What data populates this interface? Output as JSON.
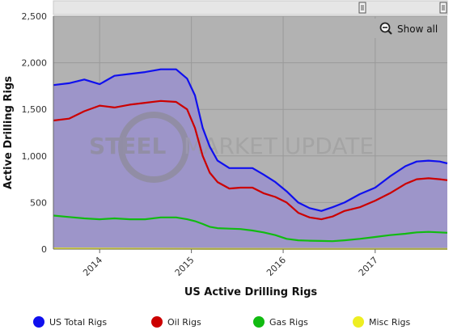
{
  "chart_data": {
    "type": "area",
    "xlabel": "US Active Drilling Rigs",
    "ylabel": "Active Drilling Rigs",
    "ylim": [
      0,
      2500
    ],
    "xlim": [
      "2013-07-01",
      "2017-10-15"
    ],
    "y_ticks": [
      "0",
      "500",
      "1,000",
      "1,500",
      "2,000",
      "2,500"
    ],
    "y_tick_values": [
      0,
      500,
      1000,
      1500,
      2000,
      2500
    ],
    "x_ticks": [
      "2014",
      "2015",
      "2016",
      "2017"
    ],
    "x_tick_dates": [
      "2014-01-01",
      "2015-01-01",
      "2016-01-01",
      "2017-01-01"
    ],
    "grid": true,
    "legend_position": "bottom",
    "watermark": {
      "left": "STEEL",
      "right": "MARKET UPDATE"
    },
    "show_all_label": "Show all",
    "colors": {
      "plot_bg": "#b2b2b2",
      "area_fill": "#9d95c9",
      "us_total": "#1010ee",
      "oil": "#cc0000",
      "gas": "#11bb11",
      "misc": "#eeee22"
    },
    "series": [
      {
        "name": "US Total Rigs",
        "color": "#1010ee",
        "points": [
          [
            "2013-07-01",
            1760
          ],
          [
            "2013-09-01",
            1780
          ],
          [
            "2013-11-01",
            1820
          ],
          [
            "2014-01-01",
            1770
          ],
          [
            "2014-03-01",
            1860
          ],
          [
            "2014-05-01",
            1880
          ],
          [
            "2014-07-01",
            1900
          ],
          [
            "2014-09-01",
            1930
          ],
          [
            "2014-11-01",
            1930
          ],
          [
            "2014-12-15",
            1830
          ],
          [
            "2015-01-15",
            1650
          ],
          [
            "2015-02-15",
            1300
          ],
          [
            "2015-03-15",
            1100
          ],
          [
            "2015-04-15",
            950
          ],
          [
            "2015-06-01",
            870
          ],
          [
            "2015-07-15",
            870
          ],
          [
            "2015-09-01",
            870
          ],
          [
            "2015-10-15",
            800
          ],
          [
            "2015-12-01",
            720
          ],
          [
            "2016-01-15",
            620
          ],
          [
            "2016-03-01",
            500
          ],
          [
            "2016-04-15",
            440
          ],
          [
            "2016-06-01",
            410
          ],
          [
            "2016-07-15",
            450
          ],
          [
            "2016-09-01",
            500
          ],
          [
            "2016-11-01",
            590
          ],
          [
            "2017-01-01",
            660
          ],
          [
            "2017-03-01",
            780
          ],
          [
            "2017-05-01",
            890
          ],
          [
            "2017-06-15",
            940
          ],
          [
            "2017-08-01",
            950
          ],
          [
            "2017-09-15",
            940
          ],
          [
            "2017-10-15",
            920
          ]
        ]
      },
      {
        "name": "Oil Rigs",
        "color": "#cc0000",
        "points": [
          [
            "2013-07-01",
            1380
          ],
          [
            "2013-09-01",
            1400
          ],
          [
            "2013-11-01",
            1480
          ],
          [
            "2014-01-01",
            1540
          ],
          [
            "2014-03-01",
            1520
          ],
          [
            "2014-05-01",
            1550
          ],
          [
            "2014-07-01",
            1570
          ],
          [
            "2014-09-01",
            1590
          ],
          [
            "2014-11-01",
            1580
          ],
          [
            "2014-12-15",
            1500
          ],
          [
            "2015-01-15",
            1300
          ],
          [
            "2015-02-15",
            1000
          ],
          [
            "2015-03-15",
            820
          ],
          [
            "2015-04-15",
            720
          ],
          [
            "2015-06-01",
            650
          ],
          [
            "2015-07-15",
            660
          ],
          [
            "2015-09-01",
            660
          ],
          [
            "2015-10-15",
            600
          ],
          [
            "2015-12-01",
            560
          ],
          [
            "2016-01-15",
            500
          ],
          [
            "2016-03-01",
            390
          ],
          [
            "2016-04-15",
            340
          ],
          [
            "2016-06-01",
            320
          ],
          [
            "2016-07-15",
            350
          ],
          [
            "2016-09-01",
            410
          ],
          [
            "2016-11-01",
            450
          ],
          [
            "2017-01-01",
            520
          ],
          [
            "2017-03-01",
            600
          ],
          [
            "2017-05-01",
            700
          ],
          [
            "2017-06-15",
            750
          ],
          [
            "2017-08-01",
            760
          ],
          [
            "2017-09-15",
            750
          ],
          [
            "2017-10-15",
            740
          ]
        ]
      },
      {
        "name": "Gas Rigs",
        "color": "#11bb11",
        "points": [
          [
            "2013-07-01",
            360
          ],
          [
            "2013-09-01",
            345
          ],
          [
            "2013-11-01",
            330
          ],
          [
            "2014-01-01",
            320
          ],
          [
            "2014-03-01",
            330
          ],
          [
            "2014-05-01",
            320
          ],
          [
            "2014-07-01",
            320
          ],
          [
            "2014-09-01",
            340
          ],
          [
            "2014-11-01",
            340
          ],
          [
            "2014-12-15",
            320
          ],
          [
            "2015-01-15",
            300
          ],
          [
            "2015-02-15",
            270
          ],
          [
            "2015-03-15",
            240
          ],
          [
            "2015-04-15",
            225
          ],
          [
            "2015-06-01",
            220
          ],
          [
            "2015-07-15",
            215
          ],
          [
            "2015-09-01",
            200
          ],
          [
            "2015-10-15",
            180
          ],
          [
            "2015-12-01",
            150
          ],
          [
            "2016-01-15",
            110
          ],
          [
            "2016-03-01",
            95
          ],
          [
            "2016-04-15",
            90
          ],
          [
            "2016-06-01",
            88
          ],
          [
            "2016-07-15",
            85
          ],
          [
            "2016-09-01",
            95
          ],
          [
            "2016-11-01",
            110
          ],
          [
            "2017-01-01",
            130
          ],
          [
            "2017-03-01",
            150
          ],
          [
            "2017-05-01",
            165
          ],
          [
            "2017-06-15",
            180
          ],
          [
            "2017-08-01",
            185
          ],
          [
            "2017-09-15",
            180
          ],
          [
            "2017-10-15",
            175
          ]
        ]
      },
      {
        "name": "Misc Rigs",
        "color": "#eeee22",
        "points": [
          [
            "2013-07-01",
            5
          ],
          [
            "2014-01-01",
            4
          ],
          [
            "2015-01-01",
            3
          ],
          [
            "2016-01-01",
            2
          ],
          [
            "2017-01-01",
            2
          ],
          [
            "2017-10-15",
            2
          ]
        ]
      }
    ]
  }
}
